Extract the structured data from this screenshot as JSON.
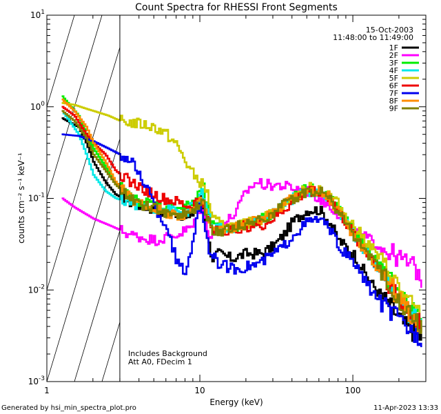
{
  "chart_data": {
    "type": "line",
    "title": "Count Spectra for RHESSI Front Segments",
    "xlabel": "Energy (keV)",
    "ylabel": "counts cm⁻² s⁻¹ keV⁻¹",
    "xscale": "log",
    "yscale": "log",
    "xlim": [
      1,
      300
    ],
    "ylim": [
      0.001,
      10
    ],
    "x_ticks": [
      {
        "value": 1,
        "label": "1"
      },
      {
        "value": 10,
        "label": "10"
      },
      {
        "value": 100,
        "label": "100"
      }
    ],
    "y_ticks": [
      {
        "value": 0.001,
        "mantissa": "10",
        "exp": "-3"
      },
      {
        "value": 0.01,
        "mantissa": "10",
        "exp": "-2"
      },
      {
        "value": 0.1,
        "mantissa": "10",
        "exp": "-1"
      },
      {
        "value": 1,
        "mantissa": "10",
        "exp": "0"
      },
      {
        "value": 10,
        "mantissa": "10",
        "exp": "1"
      }
    ],
    "hatched_region": {
      "from_keV": 1,
      "to_keV": 3
    },
    "info": {
      "date": "15-Oct-2003",
      "time_range": "11:48:00 to 11:49:00",
      "note1": "Includes Background",
      "note2": "Att A0, FDecim 1"
    },
    "legend_position": "top-right",
    "series": [
      {
        "name": "1F",
        "color": "#000000",
        "points": [
          [
            1.25,
            0.75
          ],
          [
            1.6,
            0.6
          ],
          [
            1.8,
            0.4
          ],
          [
            2.0,
            0.25
          ],
          [
            2.4,
            0.15
          ],
          [
            2.8,
            0.11
          ],
          [
            3.5,
            0.09
          ],
          [
            4.5,
            0.08
          ],
          [
            5.5,
            0.07
          ],
          [
            7,
            0.07
          ],
          [
            8.5,
            0.06
          ],
          [
            10,
            0.1
          ],
          [
            10.6,
            0.07
          ],
          [
            11.2,
            0.035
          ],
          [
            12,
            0.022
          ],
          [
            13,
            0.025
          ],
          [
            16,
            0.022
          ],
          [
            20,
            0.025
          ],
          [
            25,
            0.025
          ],
          [
            30,
            0.03
          ],
          [
            35,
            0.04
          ],
          [
            40,
            0.055
          ],
          [
            50,
            0.075
          ],
          [
            60,
            0.075
          ],
          [
            70,
            0.055
          ],
          [
            80,
            0.035
          ],
          [
            100,
            0.025
          ],
          [
            130,
            0.012
          ],
          [
            170,
            0.007
          ],
          [
            220,
            0.004
          ],
          [
            280,
            0.003
          ]
        ]
      },
      {
        "name": "2F",
        "color": "#ff00ff",
        "points": [
          [
            1.25,
            0.1
          ],
          [
            1.5,
            0.08
          ],
          [
            2.0,
            0.06
          ],
          [
            2.6,
            0.05
          ],
          [
            3.5,
            0.04
          ],
          [
            5,
            0.035
          ],
          [
            7,
            0.04
          ],
          [
            9,
            0.05
          ],
          [
            10,
            0.08
          ],
          [
            10.7,
            0.06
          ],
          [
            11.5,
            0.04
          ],
          [
            13,
            0.045
          ],
          [
            17,
            0.07
          ],
          [
            20,
            0.12
          ],
          [
            23,
            0.15
          ],
          [
            27,
            0.14
          ],
          [
            32,
            0.14
          ],
          [
            40,
            0.13
          ],
          [
            50,
            0.12
          ],
          [
            60,
            0.1
          ],
          [
            75,
            0.075
          ],
          [
            100,
            0.045
          ],
          [
            150,
            0.03
          ],
          [
            200,
            0.022
          ],
          [
            250,
            0.018
          ],
          [
            280,
            0.013
          ]
        ]
      },
      {
        "name": "3F",
        "color": "#00ee00",
        "points": [
          [
            1.25,
            1.3
          ],
          [
            1.6,
            0.8
          ],
          [
            1.8,
            0.5
          ],
          [
            2.0,
            0.35
          ],
          [
            2.4,
            0.22
          ],
          [
            2.8,
            0.15
          ],
          [
            3.5,
            0.1
          ],
          [
            4.5,
            0.09
          ],
          [
            6,
            0.08
          ],
          [
            8,
            0.08
          ],
          [
            9.5,
            0.1
          ],
          [
            10.3,
            0.15
          ],
          [
            11,
            0.08
          ],
          [
            12,
            0.05
          ],
          [
            14,
            0.045
          ],
          [
            18,
            0.05
          ],
          [
            25,
            0.06
          ],
          [
            30,
            0.07
          ],
          [
            40,
            0.1
          ],
          [
            50,
            0.13
          ],
          [
            60,
            0.12
          ],
          [
            70,
            0.1
          ],
          [
            80,
            0.075
          ],
          [
            100,
            0.045
          ],
          [
            130,
            0.025
          ],
          [
            170,
            0.013
          ],
          [
            220,
            0.007
          ],
          [
            280,
            0.005
          ]
        ]
      },
      {
        "name": "4F",
        "color": "#00e8e8",
        "points": [
          [
            1.25,
            0.9
          ],
          [
            1.6,
            0.5
          ],
          [
            1.8,
            0.3
          ],
          [
            2.0,
            0.18
          ],
          [
            2.4,
            0.12
          ],
          [
            2.8,
            0.1
          ],
          [
            3.5,
            0.09
          ],
          [
            4.5,
            0.08
          ],
          [
            6,
            0.075
          ],
          [
            8,
            0.07
          ],
          [
            9.5,
            0.09
          ],
          [
            10.3,
            0.12
          ],
          [
            11,
            0.07
          ],
          [
            12,
            0.05
          ],
          [
            14,
            0.045
          ],
          [
            18,
            0.05
          ],
          [
            25,
            0.06
          ],
          [
            30,
            0.07
          ],
          [
            40,
            0.1
          ],
          [
            50,
            0.12
          ],
          [
            60,
            0.115
          ],
          [
            70,
            0.1
          ],
          [
            80,
            0.07
          ],
          [
            100,
            0.04
          ],
          [
            130,
            0.022
          ],
          [
            170,
            0.012
          ],
          [
            220,
            0.006
          ],
          [
            280,
            0.004
          ]
        ]
      },
      {
        "name": "5F",
        "color": "#cccc00",
        "points": [
          [
            1.25,
            1.1
          ],
          [
            1.5,
            1.05
          ],
          [
            1.8,
            0.95
          ],
          [
            2.0,
            0.9
          ],
          [
            2.5,
            0.8
          ],
          [
            3.0,
            0.7
          ],
          [
            4.0,
            0.65
          ],
          [
            5.0,
            0.6
          ],
          [
            6.0,
            0.5
          ],
          [
            7.0,
            0.38
          ],
          [
            8.0,
            0.25
          ],
          [
            9.0,
            0.18
          ],
          [
            10.0,
            0.15
          ],
          [
            11.0,
            0.12
          ],
          [
            12,
            0.06
          ],
          [
            14,
            0.05
          ],
          [
            18,
            0.05
          ],
          [
            25,
            0.06
          ],
          [
            30,
            0.07
          ],
          [
            40,
            0.1
          ],
          [
            50,
            0.13
          ],
          [
            60,
            0.13
          ],
          [
            70,
            0.11
          ],
          [
            80,
            0.085
          ],
          [
            100,
            0.05
          ],
          [
            130,
            0.03
          ],
          [
            170,
            0.016
          ],
          [
            220,
            0.008
          ],
          [
            280,
            0.005
          ]
        ]
      },
      {
        "name": "6F",
        "color": "#ee0000",
        "points": [
          [
            1.25,
            1.0
          ],
          [
            1.5,
            0.8
          ],
          [
            1.8,
            0.5
          ],
          [
            2.0,
            0.4
          ],
          [
            2.4,
            0.3
          ],
          [
            2.8,
            0.2
          ],
          [
            3.5,
            0.15
          ],
          [
            4.5,
            0.12
          ],
          [
            5.5,
            0.1
          ],
          [
            7,
            0.09
          ],
          [
            8.5,
            0.08
          ],
          [
            10,
            0.1
          ],
          [
            10.7,
            0.07
          ],
          [
            11.5,
            0.05
          ],
          [
            13,
            0.045
          ],
          [
            16,
            0.045
          ],
          [
            20,
            0.05
          ],
          [
            25,
            0.05
          ],
          [
            30,
            0.06
          ],
          [
            40,
            0.09
          ],
          [
            50,
            0.12
          ],
          [
            60,
            0.12
          ],
          [
            70,
            0.1
          ],
          [
            80,
            0.07
          ],
          [
            100,
            0.04
          ],
          [
            130,
            0.022
          ],
          [
            170,
            0.012
          ],
          [
            220,
            0.006
          ],
          [
            280,
            0.004
          ]
        ]
      },
      {
        "name": "7F",
        "color": "#0000ee",
        "points": [
          [
            1.25,
            0.5
          ],
          [
            1.6,
            0.48
          ],
          [
            2.0,
            0.42
          ],
          [
            2.5,
            0.35
          ],
          [
            3.0,
            0.3
          ],
          [
            3.5,
            0.25
          ],
          [
            4.0,
            0.18
          ],
          [
            4.5,
            0.13
          ],
          [
            5.0,
            0.08
          ],
          [
            5.5,
            0.06
          ],
          [
            6.0,
            0.05
          ],
          [
            7.0,
            0.02
          ],
          [
            8.0,
            0.015
          ],
          [
            9.0,
            0.04
          ],
          [
            10.0,
            0.09
          ],
          [
            10.7,
            0.05
          ],
          [
            11.5,
            0.025
          ],
          [
            13,
            0.02
          ],
          [
            16,
            0.017
          ],
          [
            20,
            0.018
          ],
          [
            25,
            0.02
          ],
          [
            30,
            0.025
          ],
          [
            35,
            0.03
          ],
          [
            40,
            0.04
          ],
          [
            50,
            0.055
          ],
          [
            60,
            0.06
          ],
          [
            70,
            0.045
          ],
          [
            80,
            0.03
          ],
          [
            100,
            0.02
          ],
          [
            130,
            0.01
          ],
          [
            170,
            0.006
          ],
          [
            220,
            0.004
          ],
          [
            280,
            0.003
          ]
        ]
      },
      {
        "name": "8F",
        "color": "#ff8c00",
        "points": [
          [
            1.25,
            1.2
          ],
          [
            1.5,
            0.9
          ],
          [
            1.8,
            0.6
          ],
          [
            2.0,
            0.4
          ],
          [
            2.4,
            0.25
          ],
          [
            2.8,
            0.15
          ],
          [
            3.5,
            0.1
          ],
          [
            4.5,
            0.08
          ],
          [
            6,
            0.07
          ],
          [
            8,
            0.065
          ],
          [
            9.5,
            0.08
          ],
          [
            10.3,
            0.1
          ],
          [
            11,
            0.06
          ],
          [
            12,
            0.045
          ],
          [
            14,
            0.045
          ],
          [
            18,
            0.05
          ],
          [
            25,
            0.06
          ],
          [
            30,
            0.07
          ],
          [
            40,
            0.1
          ],
          [
            50,
            0.12
          ],
          [
            60,
            0.12
          ],
          [
            70,
            0.1
          ],
          [
            80,
            0.07
          ],
          [
            100,
            0.04
          ],
          [
            130,
            0.022
          ],
          [
            170,
            0.012
          ],
          [
            220,
            0.006
          ],
          [
            280,
            0.004
          ]
        ]
      },
      {
        "name": "9F",
        "color": "#808000",
        "points": [
          [
            1.25,
            0.9
          ],
          [
            1.5,
            0.7
          ],
          [
            1.8,
            0.45
          ],
          [
            2.0,
            0.3
          ],
          [
            2.4,
            0.2
          ],
          [
            2.8,
            0.14
          ],
          [
            3.5,
            0.1
          ],
          [
            4.5,
            0.08
          ],
          [
            6,
            0.07
          ],
          [
            8,
            0.065
          ],
          [
            9.5,
            0.08
          ],
          [
            10.3,
            0.1
          ],
          [
            11,
            0.06
          ],
          [
            12,
            0.045
          ],
          [
            14,
            0.045
          ],
          [
            18,
            0.05
          ],
          [
            25,
            0.06
          ],
          [
            30,
            0.07
          ],
          [
            40,
            0.1
          ],
          [
            50,
            0.12
          ],
          [
            60,
            0.12
          ],
          [
            70,
            0.1
          ],
          [
            80,
            0.07
          ],
          [
            100,
            0.04
          ],
          [
            130,
            0.022
          ],
          [
            170,
            0.012
          ],
          [
            220,
            0.006
          ],
          [
            280,
            0.004
          ]
        ]
      }
    ]
  },
  "footer": {
    "generated_by": "Generated by hsi_min_spectra_plot.pro",
    "timestamp": "11-Apr-2023 13:33"
  }
}
